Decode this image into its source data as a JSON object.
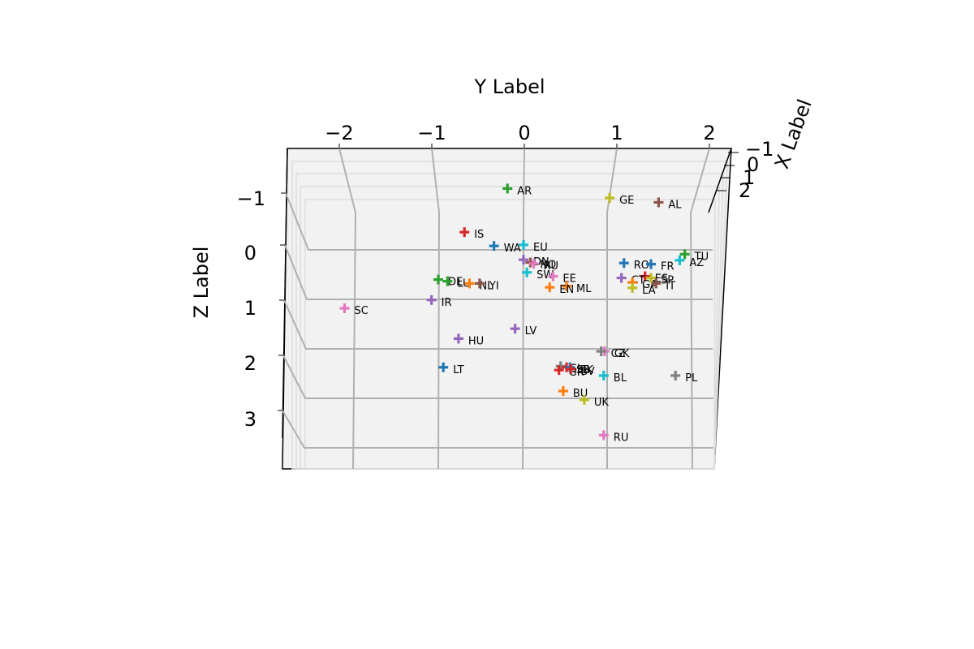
{
  "chart_data": {
    "type": "scatter3d",
    "title": "",
    "xlabel": "X Label",
    "ylabel": "Y Label",
    "zlabel": "Z Label",
    "x_ticks": [
      "−1",
      "0",
      "1",
      "2"
    ],
    "y_ticks": [
      "−2",
      "−1",
      "0",
      "1",
      "2"
    ],
    "z_ticks": [
      "−1",
      "0",
      "1",
      "2",
      "3"
    ],
    "ylim": [
      -2.4,
      2.3
    ],
    "zlim": [
      -1.5,
      3.5
    ],
    "marker": "plus",
    "grid": true,
    "points": [
      {
        "label": "AR",
        "y": -0.19,
        "z": -1.17,
        "color": "#2ca02c"
      },
      {
        "label": "GE",
        "y": 1.02,
        "z": -1.0,
        "color": "#bcbd22"
      },
      {
        "label": "AL",
        "y": 1.6,
        "z": -0.92,
        "color": "#8c564b"
      },
      {
        "label": "IS",
        "y": -0.7,
        "z": -0.38,
        "color": "#d62728"
      },
      {
        "label": "WA",
        "y": -0.35,
        "z": -0.13,
        "color": "#1f77b4"
      },
      {
        "label": "EU",
        "y": 0.0,
        "z": -0.15,
        "color": "#17becf"
      },
      {
        "label": "TU",
        "y": 1.91,
        "z": 0.02,
        "color": "#2ca02c"
      },
      {
        "label": "AZ",
        "y": 1.85,
        "z": 0.13,
        "color": "#17becf"
      },
      {
        "label": "RO",
        "y": 1.19,
        "z": 0.18,
        "color": "#1f77b4"
      },
      {
        "label": "FR",
        "y": 1.51,
        "z": 0.2,
        "color": "#1f77b4"
      },
      {
        "label": "DN",
        "y": 0.0,
        "z": 0.12,
        "color": "#9467bd"
      },
      {
        "label": "NO",
        "y": 0.08,
        "z": 0.17,
        "color": "#8c564b"
      },
      {
        "label": "RU",
        "y": 0.12,
        "z": 0.19,
        "color": "#e377c2"
      },
      {
        "label": "SW",
        "y": 0.04,
        "z": 0.35,
        "color": "#17becf"
      },
      {
        "label": "EE",
        "y": 0.35,
        "z": 0.42,
        "color": "#e377c2"
      },
      {
        "label": "ES",
        "y": 1.44,
        "z": 0.42,
        "color": "#d62728"
      },
      {
        "label": "SP",
        "y": 1.51,
        "z": 0.45,
        "color": "#bcbd22"
      },
      {
        "label": "CT",
        "y": 1.16,
        "z": 0.45,
        "color": "#9467bd"
      },
      {
        "label": "GA",
        "y": 1.29,
        "z": 0.53,
        "color": "#ff7f0e"
      },
      {
        "label": "IT",
        "y": 1.57,
        "z": 0.55,
        "color": "#8c564b"
      },
      {
        "label": "LA",
        "y": 1.29,
        "z": 0.63,
        "color": "#bcbd22"
      },
      {
        "label": "ML",
        "y": 0.51,
        "z": 0.6,
        "color": "#ff7f0e"
      },
      {
        "label": "EN",
        "y": 0.31,
        "z": 0.62,
        "color": "#ff7f0e"
      },
      {
        "label": "DE",
        "y": -1.01,
        "z": 0.48,
        "color": "#2ca02c"
      },
      {
        "label": "LU",
        "y": -0.9,
        "z": 0.51,
        "color": "#2ca02c"
      },
      {
        "label": "NL",
        "y": -0.64,
        "z": 0.55,
        "color": "#ff7f0e"
      },
      {
        "label": "YI",
        "y": -0.52,
        "z": 0.55,
        "color": "#8c564b"
      },
      {
        "label": "IR",
        "y": -1.09,
        "z": 0.85,
        "color": "#9467bd"
      },
      {
        "label": "SC",
        "y": -2.12,
        "z": 1.0,
        "color": "#e377c2"
      },
      {
        "label": "LV",
        "y": -0.1,
        "z": 1.37,
        "color": "#9467bd"
      },
      {
        "label": "HU",
        "y": -0.77,
        "z": 1.55,
        "color": "#9467bd"
      },
      {
        "label": "GK",
        "y": 0.96,
        "z": 1.78,
        "color": "#e377c2"
      },
      {
        "label": "CZ",
        "y": 0.92,
        "z": 1.78,
        "color": "#7f7f7f"
      },
      {
        "label": "LT",
        "y": -0.95,
        "z": 2.07,
        "color": "#1f77b4"
      },
      {
        "label": "SL",
        "y": 0.44,
        "z": 2.05,
        "color": "#7f7f7f"
      },
      {
        "label": "SB",
        "y": 0.51,
        "z": 2.07,
        "color": "#d62728"
      },
      {
        "label": "SK",
        "y": 0.55,
        "z": 2.07,
        "color": "#1f77b4"
      },
      {
        "label": "GR",
        "y": 0.42,
        "z": 2.12,
        "color": "#d62728"
      },
      {
        "label": "BV",
        "y": 0.56,
        "z": 2.1,
        "color": "#d62728"
      },
      {
        "label": "BL",
        "y": 0.95,
        "z": 2.22,
        "color": "#17becf"
      },
      {
        "label": "PL",
        "y": 1.8,
        "z": 2.22,
        "color": "#7f7f7f"
      },
      {
        "label": "BU",
        "y": 0.47,
        "z": 2.5,
        "color": "#ff7f0e"
      },
      {
        "label": "UK",
        "y": 0.72,
        "z": 2.66,
        "color": "#bcbd22"
      },
      {
        "label": "RU",
        "y": 0.95,
        "z": 3.3,
        "color": "#e377c2"
      }
    ]
  }
}
